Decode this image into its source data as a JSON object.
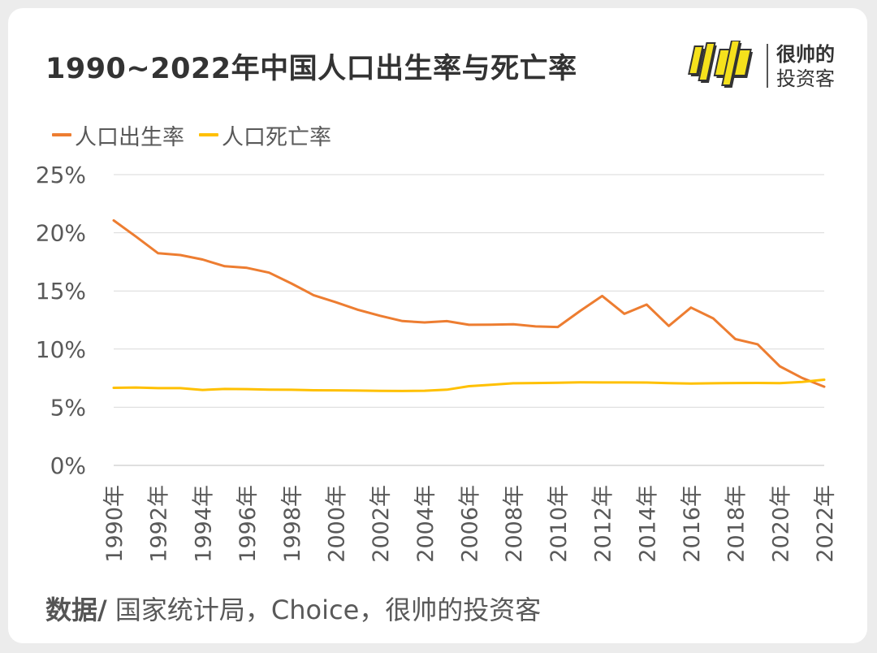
{
  "header": {
    "title": "1990~2022年中国人口出生率与死亡率"
  },
  "brand": {
    "logo_text": "帅",
    "line1": "很帅的",
    "line2": "投资客",
    "logo_color": "#f5e11c"
  },
  "source": {
    "prefix": "数据/",
    "text": " 国家统计局，Choice，很帅的投资客"
  },
  "chart_data": {
    "type": "line",
    "x": [
      1990,
      1991,
      1992,
      1993,
      1994,
      1995,
      1996,
      1997,
      1998,
      1999,
      2000,
      2001,
      2002,
      2003,
      2004,
      2005,
      2006,
      2007,
      2008,
      2009,
      2010,
      2011,
      2012,
      2013,
      2014,
      2015,
      2016,
      2017,
      2018,
      2019,
      2020,
      2021,
      2022
    ],
    "x_tick_labels": [
      "1990年",
      "1992年",
      "1994年",
      "1996年",
      "1998年",
      "2000年",
      "2002年",
      "2004年",
      "2006年",
      "2008年",
      "2010年",
      "2012年",
      "2014年",
      "2016年",
      "2018年",
      "2020年",
      "2022年"
    ],
    "y_tick_labels": [
      "0%",
      "5%",
      "10%",
      "15%",
      "20%",
      "25%"
    ],
    "ylim": [
      0,
      25
    ],
    "grid": true,
    "legend_position": "top-left",
    "series": [
      {
        "name": "人口出生率",
        "color": "#ed7d31",
        "values": [
          21.06,
          19.68,
          18.24,
          18.09,
          17.7,
          17.12,
          16.98,
          16.57,
          15.64,
          14.64,
          14.03,
          13.38,
          12.86,
          12.41,
          12.29,
          12.4,
          12.09,
          12.1,
          12.14,
          11.95,
          11.9,
          13.27,
          14.57,
          13.03,
          13.83,
          11.99,
          13.57,
          12.64,
          10.86,
          10.41,
          8.52,
          7.52,
          6.77
        ]
      },
      {
        "name": "人口死亡率",
        "color": "#ffc000",
        "values": [
          6.67,
          6.7,
          6.64,
          6.64,
          6.49,
          6.57,
          6.56,
          6.51,
          6.5,
          6.46,
          6.45,
          6.43,
          6.41,
          6.4,
          6.42,
          6.51,
          6.81,
          6.93,
          7.06,
          7.08,
          7.11,
          7.14,
          7.13,
          7.13,
          7.12,
          7.07,
          7.04,
          7.06,
          7.08,
          7.09,
          7.07,
          7.18,
          7.37
        ]
      }
    ]
  }
}
